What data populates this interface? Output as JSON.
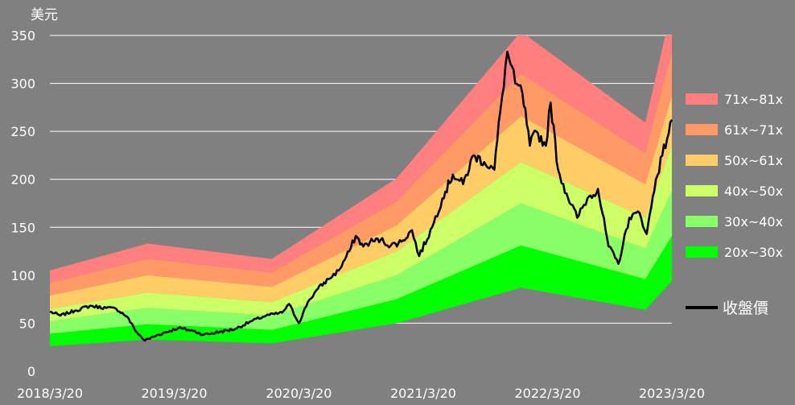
{
  "chart_data": {
    "type": "area",
    "y_unit_label": "美元",
    "ylim": [
      0,
      350
    ],
    "y_ticks": [
      0,
      50,
      100,
      150,
      200,
      250,
      300,
      350
    ],
    "x_tick_labels": [
      "2018/3/20",
      "2019/3/20",
      "2020/3/20",
      "2021/3/20",
      "2022/3/20",
      "2023/3/20"
    ],
    "grid": "horizontal",
    "legend_position": "right",
    "band_dates": [
      "2018/3/20",
      "2019/1/1",
      "2020/1/1",
      "2021/1/1",
      "2022/1/1",
      "2023/1/1",
      "2023/3/20"
    ],
    "band_boundaries": [
      {
        "name": "20x",
        "values": [
          26,
          33,
          29,
          50,
          87,
          64,
          94
        ]
      },
      {
        "name": "30x",
        "values": [
          39,
          49,
          43,
          75,
          131,
          96,
          141
        ]
      },
      {
        "name": "40x",
        "values": [
          52,
          66,
          58,
          100,
          175,
          128,
          188
        ]
      },
      {
        "name": "50x",
        "values": [
          65,
          82,
          72,
          125,
          218,
          160,
          235
        ]
      },
      {
        "name": "61x",
        "values": [
          79,
          100,
          88,
          152,
          266,
          195,
          287
        ]
      },
      {
        "name": "71x",
        "values": [
          92,
          117,
          103,
          177,
          310,
          227,
          333
        ]
      },
      {
        "name": "81x",
        "values": [
          105,
          133,
          117,
          201,
          354,
          259,
          380
        ]
      }
    ],
    "series": [
      {
        "name": "20x~30x",
        "color": "#00ff00",
        "lower": "20x",
        "upper": "30x"
      },
      {
        "name": "30x~40x",
        "color": "#88ff66",
        "lower": "30x",
        "upper": "40x"
      },
      {
        "name": "40x~50x",
        "color": "#ccff66",
        "lower": "40x",
        "upper": "50x"
      },
      {
        "name": "50x~61x",
        "color": "#ffcc66",
        "lower": "50x",
        "upper": "61x"
      },
      {
        "name": "61x~71x",
        "color": "#ff9966",
        "lower": "61x",
        "upper": "71x"
      },
      {
        "name": "71x~81x",
        "color": "#ff7f7f",
        "lower": "71x",
        "upper": "81x"
      }
    ],
    "price_series": {
      "name": "收盤價",
      "color": "#000000",
      "dates": [
        "2018/3/20",
        "2018/4/20",
        "2018/6/1",
        "2018/7/15",
        "2018/9/1",
        "2018/10/1",
        "2018/11/1",
        "2018/12/1",
        "2018/12/24",
        "2019/2/1",
        "2019/4/1",
        "2019/5/15",
        "2019/6/15",
        "2019/8/1",
        "2019/9/15",
        "2019/11/1",
        "2019/12/15",
        "2020/1/31",
        "2020/2/20",
        "2020/3/20",
        "2020/4/15",
        "2020/5/15",
        "2020/6/15",
        "2020/7/15",
        "2020/8/15",
        "2020/9/3",
        "2020/9/25",
        "2020/10/15",
        "2020/11/15",
        "2020/12/15",
        "2021/1/15",
        "2021/2/15",
        "2021/3/8",
        "2021/4/15",
        "2021/5/15",
        "2021/6/15",
        "2021/7/15",
        "2021/8/15",
        "2021/9/15",
        "2021/10/15",
        "2021/11/1",
        "2021/11/22",
        "2021/12/15",
        "2022/1/5",
        "2022/1/27",
        "2022/2/15",
        "2022/3/15",
        "2022/3/29",
        "2022/4/20",
        "2022/5/15",
        "2022/6/15",
        "2022/7/15",
        "2022/8/15",
        "2022/9/15",
        "2022/10/14",
        "2022/11/15",
        "2022/12/15",
        "2023/1/5",
        "2023/2/1",
        "2023/2/20",
        "2023/3/20"
      ],
      "values": [
        62,
        58,
        63,
        68,
        66,
        65,
        57,
        40,
        32,
        38,
        45,
        42,
        38,
        41,
        44,
        52,
        58,
        61,
        70,
        50,
        72,
        86,
        96,
        105,
        125,
        141,
        130,
        135,
        137,
        131,
        135,
        147,
        120,
        150,
        180,
        205,
        195,
        225,
        218,
        210,
        270,
        333,
        300,
        290,
        235,
        250,
        235,
        280,
        210,
        185,
        160,
        180,
        190,
        130,
        112,
        160,
        165,
        143,
        200,
        225,
        262
      ]
    }
  }
}
